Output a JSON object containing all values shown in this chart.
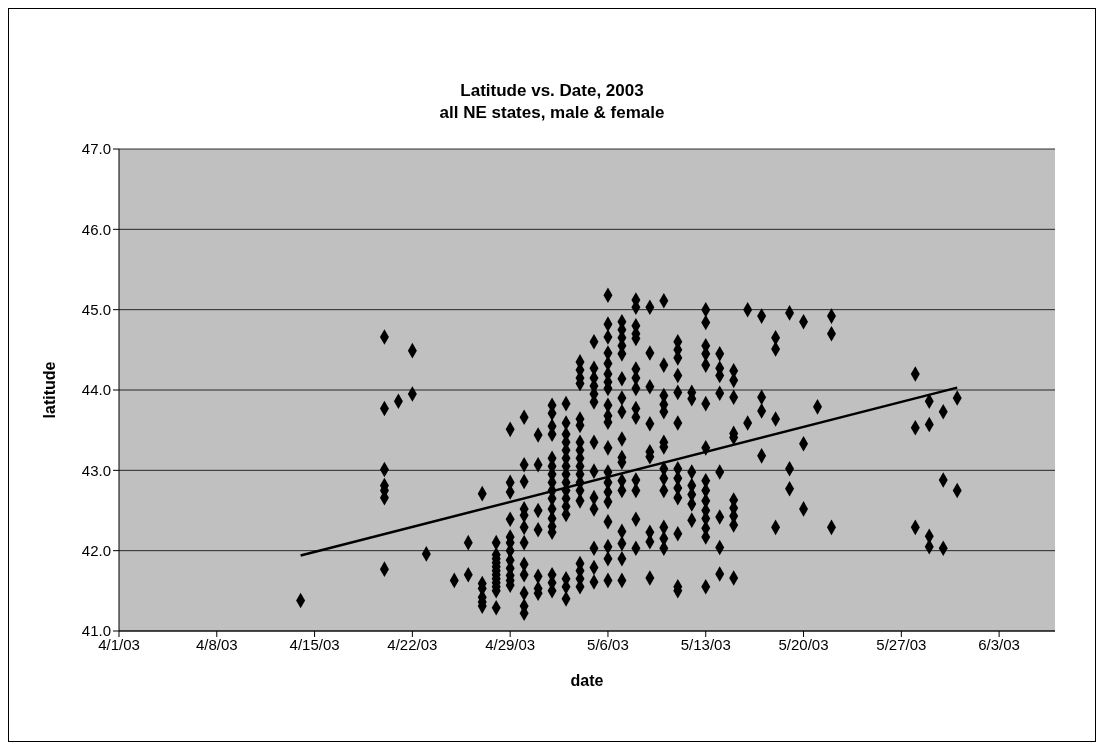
{
  "chart_data": {
    "type": "scatter",
    "title": "Latitude vs. Date, 2003",
    "subtitle": "all NE states, male & female",
    "xlabel": "date",
    "ylabel": "latitude",
    "xlim": [
      "2003-04-01",
      "2003-06-07"
    ],
    "xticks": [
      {
        "value": "2003-04-01",
        "label": "4/1/03"
      },
      {
        "value": "2003-04-08",
        "label": "4/8/03"
      },
      {
        "value": "2003-04-15",
        "label": "4/15/03"
      },
      {
        "value": "2003-04-22",
        "label": "4/22/03"
      },
      {
        "value": "2003-04-29",
        "label": "4/29/03"
      },
      {
        "value": "2003-05-06",
        "label": "5/6/03"
      },
      {
        "value": "2003-05-13",
        "label": "5/13/03"
      },
      {
        "value": "2003-05-20",
        "label": "5/20/03"
      },
      {
        "value": "2003-05-27",
        "label": "5/27/03"
      },
      {
        "value": "2003-06-03",
        "label": "6/3/03"
      }
    ],
    "ylim": [
      41,
      47
    ],
    "yticks": [
      {
        "value": 41,
        "label": "41.0"
      },
      {
        "value": 42,
        "label": "42.0"
      },
      {
        "value": 43,
        "label": "43.0"
      },
      {
        "value": 44,
        "label": "44.0"
      },
      {
        "value": 45,
        "label": "45.0"
      },
      {
        "value": 46,
        "label": "46.0"
      },
      {
        "value": 47,
        "label": "47.0"
      }
    ],
    "grid": "y",
    "marker": "diamond",
    "series": [
      {
        "color": "#000000",
        "x": [
          "2003-04-14",
          "2003-04-20",
          "2003-04-20",
          "2003-04-20",
          "2003-04-20",
          "2003-04-20",
          "2003-04-20",
          "2003-04-20",
          "2003-04-21",
          "2003-04-22",
          "2003-04-22",
          "2003-04-23",
          "2003-04-25",
          "2003-04-26",
          "2003-04-26",
          "2003-04-27",
          "2003-04-27",
          "2003-04-27",
          "2003-04-27",
          "2003-04-27",
          "2003-04-27",
          "2003-04-28",
          "2003-04-28",
          "2003-04-28",
          "2003-04-28",
          "2003-04-28",
          "2003-04-28",
          "2003-04-28",
          "2003-04-28",
          "2003-04-28",
          "2003-04-28",
          "2003-04-28",
          "2003-04-28",
          "2003-04-29",
          "2003-04-29",
          "2003-04-29",
          "2003-04-29",
          "2003-04-29",
          "2003-04-29",
          "2003-04-29",
          "2003-04-29",
          "2003-04-29",
          "2003-04-29",
          "2003-04-29",
          "2003-04-29",
          "2003-04-30",
          "2003-04-30",
          "2003-04-30",
          "2003-04-30",
          "2003-04-30",
          "2003-04-30",
          "2003-04-30",
          "2003-04-30",
          "2003-04-30",
          "2003-04-30",
          "2003-04-30",
          "2003-04-30",
          "2003-05-01",
          "2003-05-01",
          "2003-05-01",
          "2003-05-01",
          "2003-05-01",
          "2003-05-01",
          "2003-05-01",
          "2003-05-02",
          "2003-05-02",
          "2003-05-02",
          "2003-05-02",
          "2003-05-02",
          "2003-05-02",
          "2003-05-02",
          "2003-05-02",
          "2003-05-02",
          "2003-05-02",
          "2003-05-02",
          "2003-05-02",
          "2003-05-02",
          "2003-05-02",
          "2003-05-02",
          "2003-05-02",
          "2003-05-02",
          "2003-05-03",
          "2003-05-03",
          "2003-05-03",
          "2003-05-03",
          "2003-05-03",
          "2003-05-03",
          "2003-05-03",
          "2003-05-03",
          "2003-05-03",
          "2003-05-03",
          "2003-05-03",
          "2003-05-03",
          "2003-05-03",
          "2003-05-03",
          "2003-05-03",
          "2003-05-03",
          "2003-05-04",
          "2003-05-04",
          "2003-05-04",
          "2003-05-04",
          "2003-05-04",
          "2003-05-04",
          "2003-05-04",
          "2003-05-04",
          "2003-05-04",
          "2003-05-04",
          "2003-05-04",
          "2003-05-04",
          "2003-05-04",
          "2003-05-04",
          "2003-05-04",
          "2003-05-04",
          "2003-05-04",
          "2003-05-04",
          "2003-05-05",
          "2003-05-05",
          "2003-05-05",
          "2003-05-05",
          "2003-05-05",
          "2003-05-05",
          "2003-05-05",
          "2003-05-05",
          "2003-05-05",
          "2003-05-05",
          "2003-05-05",
          "2003-05-05",
          "2003-05-05",
          "2003-05-06",
          "2003-05-06",
          "2003-05-06",
          "2003-05-06",
          "2003-05-06",
          "2003-05-06",
          "2003-05-06",
          "2003-05-06",
          "2003-05-06",
          "2003-05-06",
          "2003-05-06",
          "2003-05-06",
          "2003-05-06",
          "2003-05-06",
          "2003-05-06",
          "2003-05-06",
          "2003-05-06",
          "2003-05-06",
          "2003-05-06",
          "2003-05-06",
          "2003-05-07",
          "2003-05-07",
          "2003-05-07",
          "2003-05-07",
          "2003-05-07",
          "2003-05-07",
          "2003-05-07",
          "2003-05-07",
          "2003-05-07",
          "2003-05-07",
          "2003-05-07",
          "2003-05-07",
          "2003-05-07",
          "2003-05-07",
          "2003-05-07",
          "2003-05-07",
          "2003-05-07",
          "2003-05-08",
          "2003-05-08",
          "2003-05-08",
          "2003-05-08",
          "2003-05-08",
          "2003-05-08",
          "2003-05-08",
          "2003-05-08",
          "2003-05-08",
          "2003-05-08",
          "2003-05-08",
          "2003-05-08",
          "2003-05-08",
          "2003-05-08",
          "2003-05-09",
          "2003-05-09",
          "2003-05-09",
          "2003-05-09",
          "2003-05-09",
          "2003-05-09",
          "2003-05-09",
          "2003-05-09",
          "2003-05-09",
          "2003-05-10",
          "2003-05-10",
          "2003-05-10",
          "2003-05-10",
          "2003-05-10",
          "2003-05-10",
          "2003-05-10",
          "2003-05-10",
          "2003-05-10",
          "2003-05-10",
          "2003-05-10",
          "2003-05-10",
          "2003-05-10",
          "2003-05-11",
          "2003-05-11",
          "2003-05-11",
          "2003-05-11",
          "2003-05-11",
          "2003-05-11",
          "2003-05-11",
          "2003-05-11",
          "2003-05-11",
          "2003-05-11",
          "2003-05-11",
          "2003-05-11",
          "2003-05-11",
          "2003-05-12",
          "2003-05-12",
          "2003-05-12",
          "2003-05-12",
          "2003-05-12",
          "2003-05-12",
          "2003-05-12",
          "2003-05-13",
          "2003-05-13",
          "2003-05-13",
          "2003-05-13",
          "2003-05-13",
          "2003-05-13",
          "2003-05-13",
          "2003-05-13",
          "2003-05-13",
          "2003-05-13",
          "2003-05-13",
          "2003-05-13",
          "2003-05-13",
          "2003-05-13",
          "2003-05-13",
          "2003-05-14",
          "2003-05-14",
          "2003-05-14",
          "2003-05-14",
          "2003-05-14",
          "2003-05-14",
          "2003-05-14",
          "2003-05-14",
          "2003-05-15",
          "2003-05-15",
          "2003-05-15",
          "2003-05-15",
          "2003-05-15",
          "2003-05-15",
          "2003-05-15",
          "2003-05-15",
          "2003-05-15",
          "2003-05-15",
          "2003-05-16",
          "2003-05-16",
          "2003-05-17",
          "2003-05-17",
          "2003-05-17",
          "2003-05-17",
          "2003-05-18",
          "2003-05-18",
          "2003-05-18",
          "2003-05-18",
          "2003-05-19",
          "2003-05-19",
          "2003-05-19",
          "2003-05-20",
          "2003-05-20",
          "2003-05-20",
          "2003-05-21",
          "2003-05-22",
          "2003-05-22",
          "2003-05-22",
          "2003-05-28",
          "2003-05-28",
          "2003-05-28",
          "2003-05-29",
          "2003-05-29",
          "2003-05-29",
          "2003-05-29",
          "2003-05-30",
          "2003-05-30",
          "2003-05-30",
          "2003-05-31",
          "2003-05-31"
        ],
        "values": [
          41.38,
          44.66,
          43.77,
          43.01,
          42.81,
          42.75,
          42.66,
          41.77,
          43.86,
          44.49,
          43.95,
          41.96,
          41.63,
          42.1,
          41.7,
          42.71,
          41.59,
          41.53,
          41.42,
          41.36,
          41.31,
          42.1,
          41.95,
          41.9,
          41.85,
          41.8,
          41.75,
          41.7,
          41.65,
          41.6,
          41.55,
          41.5,
          41.29,
          43.51,
          42.85,
          42.73,
          42.39,
          42.17,
          42.1,
          42.0,
          41.88,
          41.78,
          41.69,
          41.63,
          41.57,
          43.66,
          43.07,
          42.86,
          42.52,
          42.44,
          42.29,
          42.1,
          41.83,
          41.7,
          41.47,
          41.31,
          41.22,
          43.44,
          43.07,
          42.5,
          42.26,
          41.68,
          41.53,
          41.47,
          43.81,
          43.71,
          43.55,
          43.45,
          43.15,
          43.05,
          42.95,
          42.85,
          42.75,
          42.65,
          42.52,
          42.4,
          42.3,
          42.23,
          41.7,
          41.6,
          41.5,
          43.83,
          43.59,
          43.45,
          43.35,
          43.25,
          43.15,
          43.05,
          42.95,
          42.85,
          42.75,
          42.65,
          42.55,
          42.45,
          41.65,
          41.55,
          41.4,
          44.35,
          44.25,
          44.15,
          44.08,
          43.64,
          43.56,
          43.35,
          43.25,
          43.15,
          43.05,
          42.95,
          42.85,
          42.75,
          42.62,
          41.84,
          41.75,
          41.65,
          41.55,
          44.6,
          44.27,
          44.15,
          44.05,
          43.95,
          43.85,
          43.35,
          42.99,
          42.66,
          42.52,
          42.03,
          41.79,
          41.61,
          45.18,
          44.82,
          44.66,
          44.46,
          44.33,
          44.2,
          44.1,
          44.02,
          43.81,
          43.68,
          43.6,
          43.28,
          42.98,
          42.85,
          42.73,
          42.61,
          42.36,
          42.05,
          41.9,
          41.63,
          44.85,
          44.75,
          44.65,
          44.55,
          44.45,
          44.14,
          43.9,
          43.73,
          43.39,
          43.16,
          43.1,
          42.87,
          42.75,
          42.24,
          42.09,
          41.9,
          41.63,
          45.12,
          45.03,
          44.8,
          44.7,
          44.64,
          44.26,
          44.15,
          44.02,
          43.77,
          43.66,
          42.88,
          42.75,
          42.39,
          42.03,
          45.03,
          44.46,
          44.04,
          43.58,
          43.23,
          43.17,
          42.23,
          42.11,
          41.66,
          45.11,
          44.31,
          43.93,
          43.82,
          43.73,
          43.35,
          43.29,
          43.02,
          42.9,
          42.75,
          42.29,
          42.15,
          42.03,
          44.6,
          44.5,
          44.4,
          44.18,
          43.97,
          43.59,
          43.02,
          42.9,
          42.78,
          42.66,
          42.21,
          41.55,
          41.5,
          43.97,
          43.89,
          42.98,
          42.81,
          42.7,
          42.58,
          42.38,
          45.0,
          44.84,
          44.55,
          44.45,
          44.31,
          43.83,
          43.28,
          42.87,
          42.75,
          42.62,
          42.5,
          42.4,
          42.28,
          42.17,
          41.55,
          44.45,
          44.27,
          44.18,
          43.96,
          42.98,
          42.42,
          42.04,
          41.71,
          44.24,
          44.12,
          43.91,
          43.46,
          43.41,
          42.63,
          42.53,
          42.43,
          42.32,
          41.66,
          45.0,
          43.59,
          44.92,
          43.91,
          43.74,
          43.18,
          44.65,
          44.51,
          43.64,
          42.29,
          44.96,
          43.02,
          42.77,
          44.85,
          43.33,
          42.52,
          43.79,
          44.92,
          44.7,
          42.29,
          44.2,
          43.53,
          42.29,
          43.86,
          43.57,
          42.18,
          42.05,
          43.73,
          42.88,
          42.03,
          43.9,
          42.75
        ]
      },
      {
        "type": "line",
        "color": "#000000",
        "marker": "none",
        "x": [
          "2003-04-14",
          "2003-05-31"
        ],
        "values": [
          41.94,
          44.03
        ]
      }
    ]
  }
}
